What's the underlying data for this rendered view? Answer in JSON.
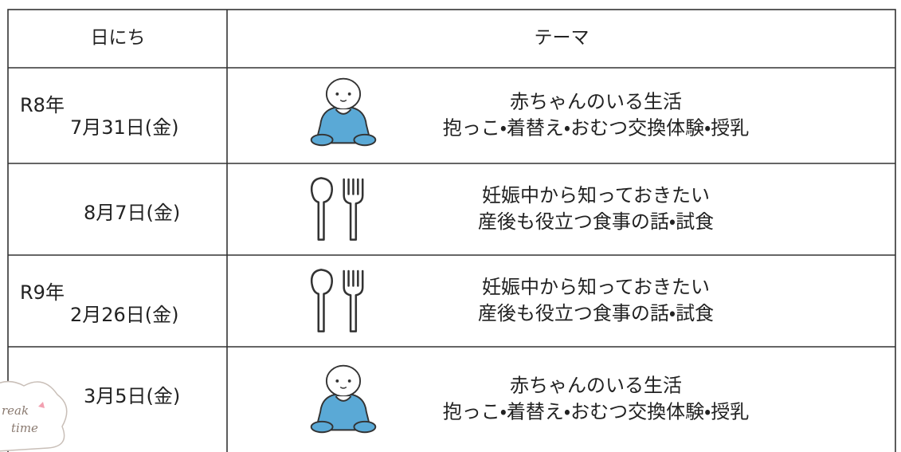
{
  "table": {
    "header": [
      "日にち",
      "テーマ"
    ],
    "rows": [
      {
        "date": [
          "R8年",
          "7月31日(金)"
        ],
        "theme": [
          "赤ちゃんのいる生活",
          "抱っこ・着替え・おむつ交換体験・授乳"
        ]
      },
      {
        "date": [
          "8月7日(金)"
        ],
        "theme": [
          "妊娠中から知っておきたい",
          "産後も役立つ食事の話・試食"
        ]
      },
      {
        "date": [
          "R9年",
          "2月26日(金)"
        ],
        "theme": [
          "妊娠中から知っておきたい",
          "産後も役立つ食事の話・試食"
        ]
      },
      {
        "date": [
          "3月5日(金)"
        ],
        "theme": [
          "赤ちゃんのいる生活",
          "抱っこ・着替え・おむつ交換体験・授乳"
        ]
      }
    ]
  },
  "badge": {
    "text": [
      "reak",
      "time"
    ]
  }
}
